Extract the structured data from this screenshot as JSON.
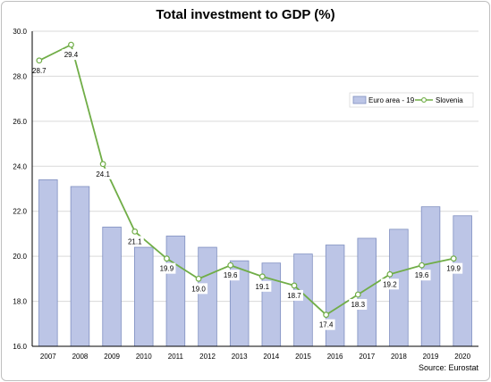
{
  "chart_data": {
    "type": "bar+line",
    "title": "Total investment to GDP  (%)",
    "source": "Source: Eurostat",
    "categories": [
      "2007",
      "2008",
      "2009",
      "2010",
      "2011",
      "2012",
      "2013",
      "2014",
      "2015",
      "2016",
      "2017",
      "2018",
      "2019",
      "2020"
    ],
    "ylim": [
      16.0,
      30.0
    ],
    "yticks": [
      "16.0",
      "18.0",
      "20.0",
      "22.0",
      "24.0",
      "26.0",
      "28.0",
      "30.0"
    ],
    "grid": true,
    "legend_position": "right",
    "series": [
      {
        "name": "Euro area - 19",
        "kind": "bar",
        "color": "#bcc5e6",
        "values": [
          23.4,
          23.1,
          21.3,
          20.4,
          20.9,
          20.4,
          19.8,
          19.7,
          20.1,
          20.5,
          20.8,
          21.2,
          22.2,
          21.8
        ]
      },
      {
        "name": "Slovenia",
        "kind": "line",
        "color": "#70ad47",
        "values": [
          28.7,
          29.4,
          24.1,
          21.1,
          19.9,
          19.0,
          19.6,
          19.1,
          18.7,
          17.4,
          18.3,
          19.2,
          19.6,
          19.9
        ],
        "labels": [
          "28.7",
          "29.4",
          "24.1",
          "21.1",
          "19.9",
          "19.0",
          "19.6",
          "19.1",
          "18.7",
          "17.4",
          "18.3",
          "19.2",
          "19.6",
          "19.9"
        ]
      }
    ]
  }
}
